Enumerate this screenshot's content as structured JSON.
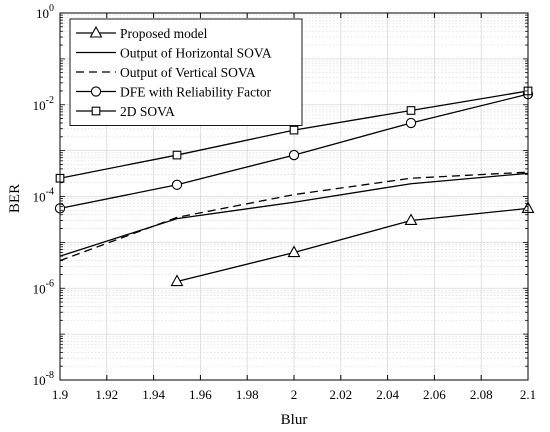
{
  "chart_data": {
    "type": "line",
    "title": "",
    "xlabel": "Blur",
    "ylabel": "BER",
    "xlim": [
      1.9,
      2.1
    ],
    "ylim": [
      1e-08,
      1
    ],
    "yscale": "log",
    "grid": true,
    "legend_position": "top-left",
    "x_ticks": [
      "1.9",
      "1.92",
      "1.94",
      "1.96",
      "1.98",
      "2",
      "2.02",
      "2.04",
      "2.06",
      "2.08",
      "2.1"
    ],
    "y_ticks": [
      {
        "base": "10",
        "exp": "0"
      },
      {
        "base": "10",
        "exp": "-2"
      },
      {
        "base": "10",
        "exp": "-4"
      },
      {
        "base": "10",
        "exp": "-6"
      },
      {
        "base": "10",
        "exp": "-8"
      }
    ],
    "series": [
      {
        "name": "Proposed model",
        "marker": "triangle",
        "dash": "solid",
        "x": [
          1.95,
          2.0,
          2.05,
          2.1
        ],
        "y": [
          1.4e-06,
          6e-06,
          3e-05,
          5.5e-05
        ]
      },
      {
        "name": "Output of Horizontal SOVA",
        "marker": "none",
        "dash": "solid",
        "x": [
          1.9,
          1.95,
          2.0,
          2.05,
          2.1
        ],
        "y": [
          5e-06,
          3.3e-05,
          7.5e-05,
          0.00019,
          0.00032
        ]
      },
      {
        "name": "Output of Vertical SOVA",
        "marker": "none",
        "dash": "dashed",
        "x": [
          1.9,
          1.95,
          2.0,
          2.05,
          2.1
        ],
        "y": [
          4e-06,
          3.5e-05,
          0.00011,
          0.00025,
          0.00034
        ]
      },
      {
        "name": "DFE with Reliability Factor",
        "marker": "circle",
        "dash": "solid",
        "x": [
          1.9,
          1.95,
          2.0,
          2.05,
          2.1
        ],
        "y": [
          5.5e-05,
          0.00018,
          0.0008,
          0.004,
          0.017
        ]
      },
      {
        "name": "2D SOVA",
        "marker": "square",
        "dash": "solid",
        "x": [
          1.9,
          1.95,
          2.0,
          2.05,
          2.1
        ],
        "y": [
          0.00025,
          0.0008,
          0.0028,
          0.0075,
          0.02
        ]
      }
    ]
  }
}
